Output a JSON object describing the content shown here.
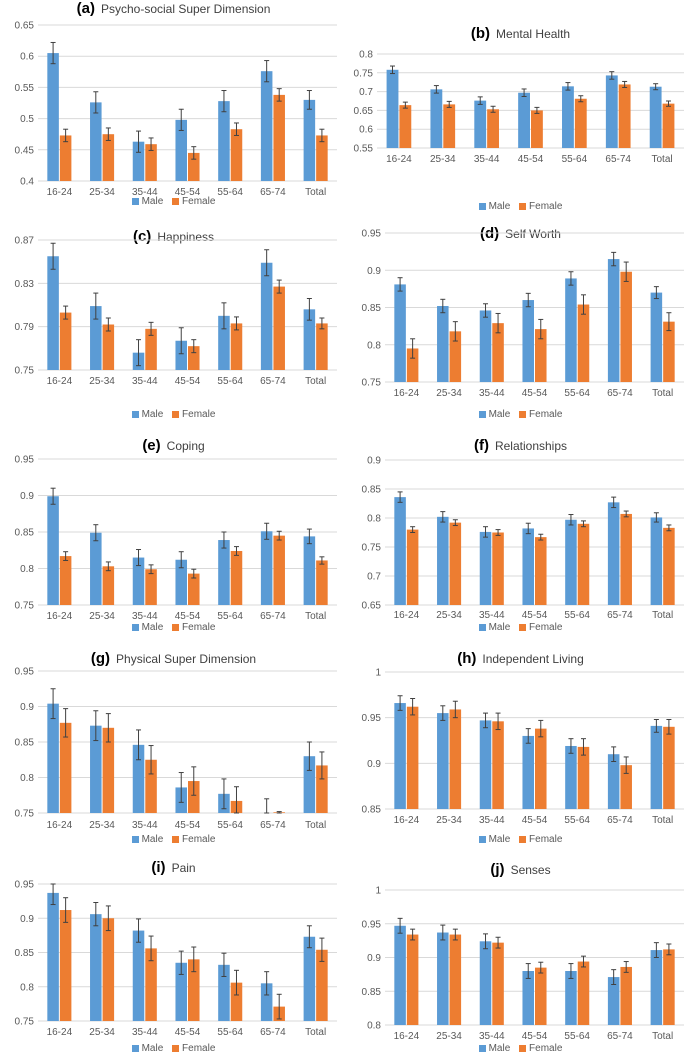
{
  "colors": {
    "male": "#5B9BD5",
    "female": "#ED7D31",
    "grid": "#D9D9D9",
    "axis_text": "#595959",
    "errorbar": "#404040"
  },
  "legend": {
    "male": "Male",
    "female": "Female"
  },
  "chart_data": [
    {
      "type": "bar",
      "label": "(a)",
      "title": "Psycho-social Super Dimension",
      "categories": [
        "16-24",
        "25-34",
        "35-44",
        "45-54",
        "55-64",
        "65-74",
        "Total"
      ],
      "ylim": [
        0.4,
        0.65
      ],
      "yticks": [
        0.4,
        0.45,
        0.5,
        0.55,
        0.6,
        0.65
      ],
      "ytick_labels": [
        "0.4",
        "0.45",
        "0.5",
        "0.55",
        "0.6",
        "0.65"
      ],
      "series": [
        {
          "name": "Male",
          "values": [
            0.605,
            0.526,
            0.463,
            0.498,
            0.528,
            0.576,
            0.53
          ],
          "errors": [
            0.017,
            0.017,
            0.017,
            0.017,
            0.017,
            0.017,
            0.015
          ]
        },
        {
          "name": "Female",
          "values": [
            0.473,
            0.475,
            0.459,
            0.445,
            0.483,
            0.538,
            0.473
          ],
          "errors": [
            0.01,
            0.01,
            0.01,
            0.01,
            0.01,
            0.01,
            0.01
          ]
        }
      ]
    },
    {
      "type": "bar",
      "label": "(b)",
      "title": "Mental Health",
      "categories": [
        "16-24",
        "25-34",
        "35-44",
        "45-54",
        "55-64",
        "65-74",
        "Total"
      ],
      "ylim": [
        0.55,
        0.8
      ],
      "yticks": [
        0.55,
        0.6,
        0.65,
        0.7,
        0.75,
        0.8
      ],
      "ytick_labels": [
        "0.55",
        "0.6",
        "0.65",
        "0.7",
        "0.75",
        "0.8"
      ],
      "series": [
        {
          "name": "Male",
          "values": [
            0.758,
            0.706,
            0.676,
            0.697,
            0.714,
            0.743,
            0.713
          ],
          "errors": [
            0.01,
            0.01,
            0.01,
            0.01,
            0.01,
            0.01,
            0.008
          ]
        },
        {
          "name": "Female",
          "values": [
            0.664,
            0.666,
            0.653,
            0.65,
            0.681,
            0.719,
            0.668
          ],
          "errors": [
            0.008,
            0.008,
            0.008,
            0.008,
            0.008,
            0.008,
            0.007
          ]
        }
      ]
    },
    {
      "type": "bar",
      "label": "(c)",
      "title": "Happiness",
      "categories": [
        "16-24",
        "25-34",
        "35-44",
        "45-54",
        "55-64",
        "65-74",
        "Total"
      ],
      "ylim": [
        0.75,
        0.87
      ],
      "yticks": [
        0.75,
        0.79,
        0.83,
        0.87
      ],
      "ytick_labels": [
        "0.75",
        "0.79",
        "0.83",
        "0.87"
      ],
      "series": [
        {
          "name": "Male",
          "values": [
            0.855,
            0.809,
            0.766,
            0.777,
            0.8,
            0.849,
            0.806
          ],
          "errors": [
            0.012,
            0.012,
            0.012,
            0.012,
            0.012,
            0.012,
            0.01
          ]
        },
        {
          "name": "Female",
          "values": [
            0.803,
            0.792,
            0.788,
            0.772,
            0.793,
            0.827,
            0.793
          ],
          "errors": [
            0.006,
            0.006,
            0.006,
            0.006,
            0.006,
            0.006,
            0.005
          ]
        }
      ]
    },
    {
      "type": "bar",
      "label": "(d)",
      "title": "Self Worth",
      "categories": [
        "16-24",
        "25-34",
        "35-44",
        "45-54",
        "55-64",
        "65-74",
        "Total"
      ],
      "ylim": [
        0.75,
        0.95
      ],
      "yticks": [
        0.75,
        0.8,
        0.85,
        0.9,
        0.95
      ],
      "ytick_labels": [
        "0.75",
        "0.8",
        "0.85",
        "0.9",
        "0.95"
      ],
      "series": [
        {
          "name": "Male",
          "values": [
            0.881,
            0.852,
            0.846,
            0.86,
            0.889,
            0.915,
            0.87
          ],
          "errors": [
            0.009,
            0.009,
            0.009,
            0.009,
            0.009,
            0.009,
            0.008
          ]
        },
        {
          "name": "Female",
          "values": [
            0.795,
            0.818,
            0.829,
            0.821,
            0.854,
            0.898,
            0.831
          ],
          "errors": [
            0.013,
            0.013,
            0.013,
            0.013,
            0.013,
            0.013,
            0.012
          ]
        }
      ]
    },
    {
      "type": "bar",
      "label": "(e)",
      "title": "Coping",
      "categories": [
        "16-24",
        "25-34",
        "35-44",
        "45-54",
        "55-64",
        "65-74",
        "Total"
      ],
      "ylim": [
        0.75,
        0.95
      ],
      "yticks": [
        0.75,
        0.8,
        0.85,
        0.9,
        0.95
      ],
      "ytick_labels": [
        "0.75",
        "0.8",
        "0.85",
        "0.9",
        "0.95"
      ],
      "series": [
        {
          "name": "Male",
          "values": [
            0.899,
            0.849,
            0.815,
            0.812,
            0.839,
            0.851,
            0.844
          ],
          "errors": [
            0.011,
            0.011,
            0.011,
            0.011,
            0.011,
            0.011,
            0.01
          ]
        },
        {
          "name": "Female",
          "values": [
            0.817,
            0.803,
            0.799,
            0.793,
            0.824,
            0.845,
            0.811
          ],
          "errors": [
            0.006,
            0.006,
            0.006,
            0.006,
            0.006,
            0.006,
            0.005
          ]
        }
      ]
    },
    {
      "type": "bar",
      "label": "(f)",
      "title": "Relationships",
      "categories": [
        "16-24",
        "25-34",
        "35-44",
        "45-54",
        "55-64",
        "65-74",
        "Total"
      ],
      "ylim": [
        0.65,
        0.9
      ],
      "yticks": [
        0.65,
        0.7,
        0.75,
        0.8,
        0.85,
        0.9
      ],
      "ytick_labels": [
        "0.65",
        "0.7",
        "0.75",
        "0.8",
        "0.85",
        "0.9"
      ],
      "series": [
        {
          "name": "Male",
          "values": [
            0.836,
            0.802,
            0.776,
            0.782,
            0.797,
            0.827,
            0.801
          ],
          "errors": [
            0.009,
            0.009,
            0.009,
            0.009,
            0.009,
            0.009,
            0.008
          ]
        },
        {
          "name": "Female",
          "values": [
            0.78,
            0.792,
            0.775,
            0.767,
            0.79,
            0.807,
            0.783
          ],
          "errors": [
            0.005,
            0.005,
            0.005,
            0.005,
            0.005,
            0.005,
            0.005
          ]
        }
      ]
    },
    {
      "type": "bar",
      "label": "(g)",
      "title": "Physical Super Dimension",
      "categories": [
        "16-24",
        "25-34",
        "35-44",
        "45-54",
        "55-64",
        "65-74",
        "Total"
      ],
      "ylim": [
        0.75,
        0.95
      ],
      "yticks": [
        0.75,
        0.8,
        0.85,
        0.9,
        0.95
      ],
      "ytick_labels": [
        "0.75",
        "0.8",
        "0.85",
        "0.9",
        "0.95"
      ],
      "series": [
        {
          "name": "Male",
          "values": [
            0.904,
            0.873,
            0.846,
            0.786,
            0.777,
            0.749,
            0.83
          ],
          "errors": [
            0.021,
            0.021,
            0.021,
            0.021,
            0.021,
            0.021,
            0.02
          ]
        },
        {
          "name": "Female",
          "values": [
            0.877,
            0.87,
            0.825,
            0.795,
            0.767,
            0.751,
            0.817
          ],
          "errors": [
            0.02,
            0.02,
            0.02,
            0.02,
            0.02,
            0.001,
            0.019
          ]
        }
      ]
    },
    {
      "type": "bar",
      "label": "(h)",
      "title": "Independent Living",
      "categories": [
        "16-24",
        "25-34",
        "35-44",
        "45-54",
        "55-64",
        "65-74",
        "Total"
      ],
      "ylim": [
        0.85,
        1.0
      ],
      "yticks": [
        0.85,
        0.9,
        0.95,
        1.0
      ],
      "ytick_labels": [
        "0.85",
        "0.9",
        "0.95",
        "1"
      ],
      "series": [
        {
          "name": "Male",
          "values": [
            0.966,
            0.955,
            0.947,
            0.93,
            0.919,
            0.91,
            0.941
          ],
          "errors": [
            0.008,
            0.008,
            0.008,
            0.008,
            0.008,
            0.008,
            0.007
          ]
        },
        {
          "name": "Female",
          "values": [
            0.962,
            0.959,
            0.946,
            0.938,
            0.918,
            0.898,
            0.94
          ],
          "errors": [
            0.009,
            0.009,
            0.009,
            0.009,
            0.009,
            0.009,
            0.008
          ]
        }
      ]
    },
    {
      "type": "bar",
      "label": "(i)",
      "title": "Pain",
      "categories": [
        "16-24",
        "25-34",
        "35-44",
        "45-54",
        "55-64",
        "65-74",
        "Total"
      ],
      "ylim": [
        0.75,
        0.95
      ],
      "yticks": [
        0.75,
        0.8,
        0.85,
        0.9,
        0.95
      ],
      "ytick_labels": [
        "0.75",
        "0.8",
        "0.85",
        "0.9",
        "0.95"
      ],
      "series": [
        {
          "name": "Male",
          "values": [
            0.937,
            0.906,
            0.882,
            0.835,
            0.832,
            0.805,
            0.873
          ],
          "errors": [
            0.017,
            0.017,
            0.017,
            0.017,
            0.017,
            0.017,
            0.016
          ]
        },
        {
          "name": "Female",
          "values": [
            0.912,
            0.9,
            0.856,
            0.84,
            0.806,
            0.771,
            0.854
          ],
          "errors": [
            0.018,
            0.018,
            0.018,
            0.018,
            0.018,
            0.018,
            0.017
          ]
        }
      ]
    },
    {
      "type": "bar",
      "label": "(j)",
      "title": "Senses",
      "categories": [
        "16-24",
        "25-34",
        "35-44",
        "45-54",
        "55-64",
        "65-74",
        "Total"
      ],
      "ylim": [
        0.8,
        1.0
      ],
      "yticks": [
        0.8,
        0.85,
        0.9,
        0.95,
        1.0
      ],
      "ytick_labels": [
        "0.8",
        "0.85",
        "0.9",
        "0.95",
        "1"
      ],
      "series": [
        {
          "name": "Male",
          "values": [
            0.947,
            0.937,
            0.924,
            0.88,
            0.88,
            0.871,
            0.911
          ],
          "errors": [
            0.011,
            0.011,
            0.011,
            0.011,
            0.011,
            0.011,
            0.011
          ]
        },
        {
          "name": "Female",
          "values": [
            0.934,
            0.934,
            0.922,
            0.885,
            0.894,
            0.886,
            0.912
          ],
          "errors": [
            0.008,
            0.008,
            0.008,
            0.008,
            0.008,
            0.008,
            0.008
          ]
        }
      ]
    }
  ]
}
